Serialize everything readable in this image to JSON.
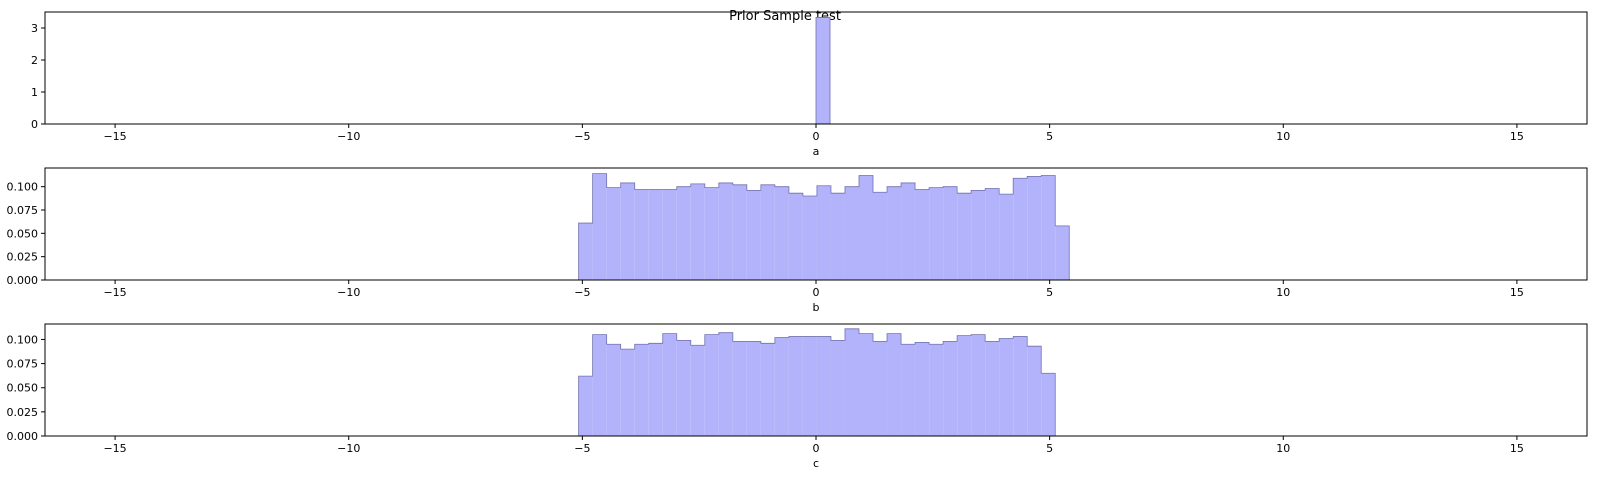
{
  "figure": {
    "title": "Prior Sample test"
  },
  "style": {
    "fill_color": "#b3b3fb",
    "edge_color": "#7070b0",
    "axis_color": "#000000"
  },
  "chart_data": [
    {
      "type": "bar",
      "xlabel": "a",
      "ylabel": "",
      "xlim": [
        -16.5,
        16.5
      ],
      "ylim": [
        0,
        3.5
      ],
      "xticks": [
        "−15",
        "−10",
        "−5",
        "0",
        "5",
        "10",
        "15"
      ],
      "xtick_values": [
        -15,
        -10,
        -5,
        0,
        5,
        10,
        15
      ],
      "yticks": [
        "0",
        "1",
        "2",
        "3"
      ],
      "ytick_values": [
        0,
        1,
        2,
        3
      ],
      "bins": {
        "start": 0.0,
        "width": 0.3,
        "values": [
          3.33
        ]
      }
    },
    {
      "type": "bar",
      "xlabel": "b",
      "ylabel": "",
      "xlim": [
        -16.5,
        16.5
      ],
      "ylim": [
        0,
        0.12
      ],
      "xticks": [
        "−15",
        "−10",
        "−5",
        "0",
        "5",
        "10",
        "15"
      ],
      "xtick_values": [
        -15,
        -10,
        -5,
        0,
        5,
        10,
        15
      ],
      "yticks": [
        "0.000",
        "0.025",
        "0.050",
        "0.075",
        "0.100"
      ],
      "ytick_values": [
        0,
        0.025,
        0.05,
        0.075,
        0.1
      ],
      "bins": {
        "start": -5.08,
        "width": 0.3,
        "values": [
          0.061,
          0.114,
          0.099,
          0.104,
          0.097,
          0.097,
          0.097,
          0.1,
          0.103,
          0.099,
          0.104,
          0.102,
          0.096,
          0.102,
          0.1,
          0.093,
          0.09,
          0.101,
          0.093,
          0.1,
          0.112,
          0.094,
          0.1,
          0.104,
          0.097,
          0.099,
          0.1,
          0.093,
          0.096,
          0.098,
          0.092,
          0.109,
          0.111,
          0.112,
          0.058
        ]
      }
    },
    {
      "type": "bar",
      "xlabel": "c",
      "ylabel": "",
      "xlim": [
        -16.5,
        16.5
      ],
      "ylim": [
        0,
        0.116
      ],
      "xticks": [
        "−15",
        "−10",
        "−5",
        "0",
        "5",
        "10",
        "15"
      ],
      "xtick_values": [
        -15,
        -10,
        -5,
        0,
        5,
        10,
        15
      ],
      "yticks": [
        "0.000",
        "0.025",
        "0.050",
        "0.075",
        "0.100"
      ],
      "ytick_values": [
        0,
        0.025,
        0.05,
        0.075,
        0.1
      ],
      "bins": {
        "start": -5.08,
        "width": 0.3,
        "values": [
          0.062,
          0.105,
          0.095,
          0.09,
          0.095,
          0.096,
          0.106,
          0.099,
          0.094,
          0.105,
          0.107,
          0.098,
          0.098,
          0.096,
          0.102,
          0.103,
          0.103,
          0.103,
          0.099,
          0.111,
          0.106,
          0.098,
          0.106,
          0.095,
          0.097,
          0.095,
          0.098,
          0.104,
          0.105,
          0.098,
          0.101,
          0.103,
          0.093,
          0.065
        ]
      }
    }
  ]
}
